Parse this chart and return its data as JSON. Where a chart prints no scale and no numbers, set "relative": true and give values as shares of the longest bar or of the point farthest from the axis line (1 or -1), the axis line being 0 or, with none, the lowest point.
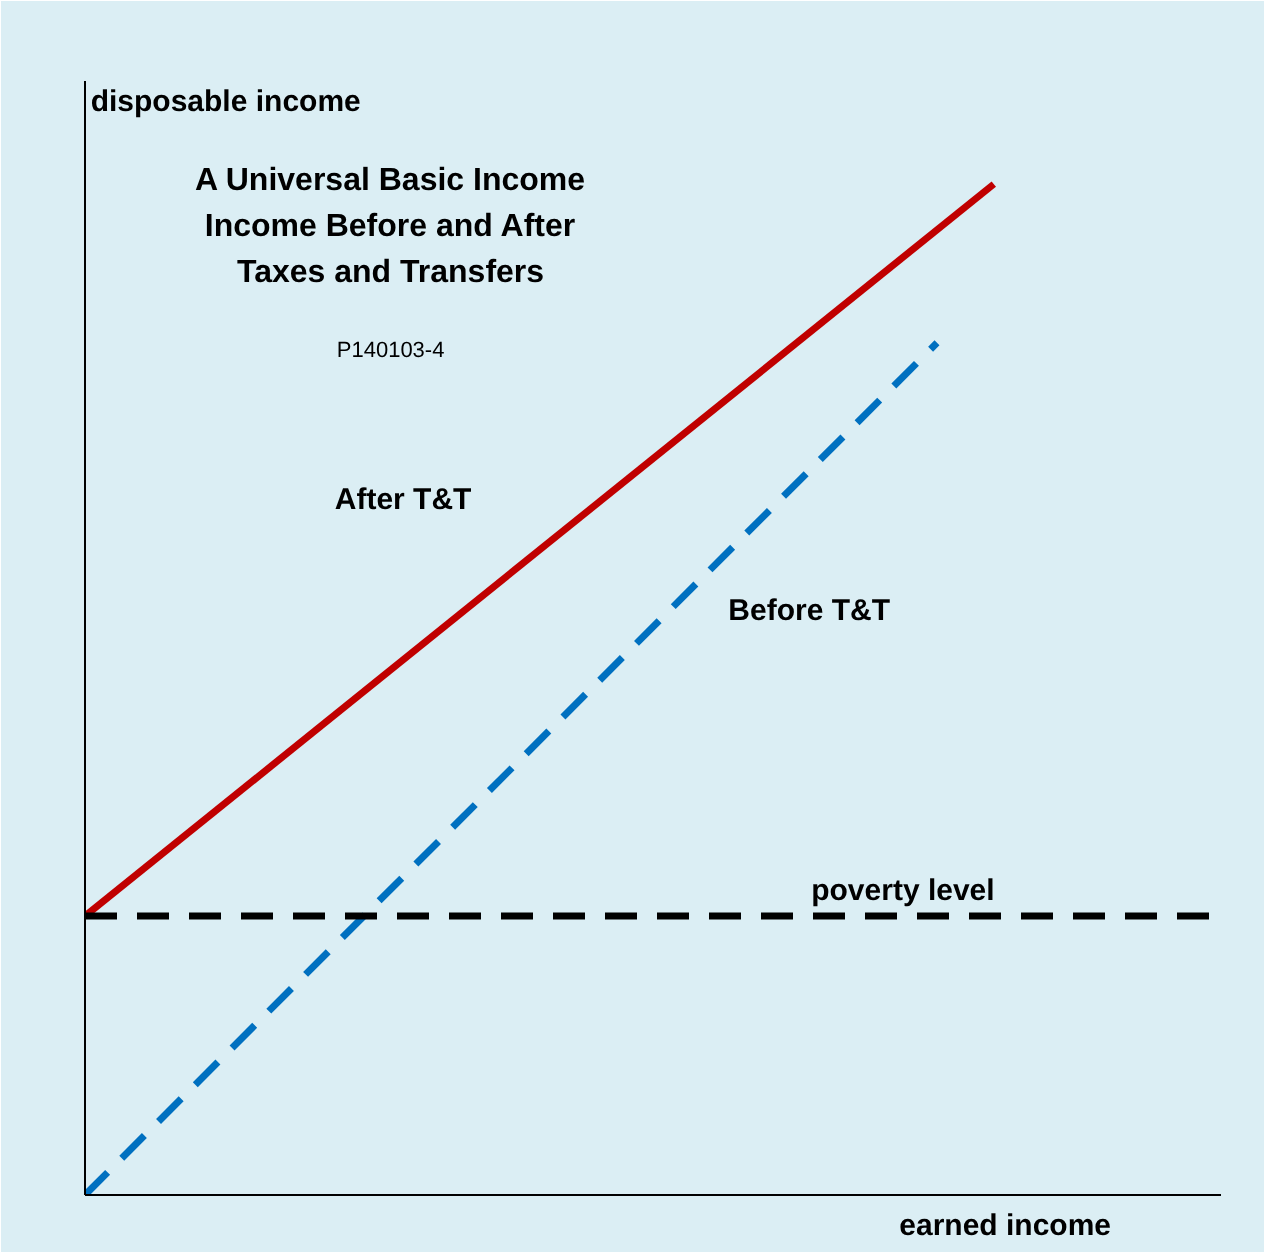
{
  "chart_data": {
    "type": "line",
    "title": "A Universal Basic Income\nIncome Before and After\nTaxes and Transfers",
    "subtitle": "P140103-4",
    "xlabel": "earned income",
    "ylabel": "disposable income",
    "relative": true,
    "categories": [
      null,
      null,
      null,
      null,
      null,
      null,
      null,
      null,
      null,
      null,
      null,
      null,
      null,
      null,
      null,
      null,
      null,
      null,
      null,
      null,
      null
    ],
    "series": [
      {
        "name": "After T&T",
        "color": "#c00000",
        "line_style": "solid",
        "values": [
          0.276,
          null,
          null,
          null,
          null,
          null,
          null,
          null,
          null,
          null,
          null,
          null,
          null,
          null,
          null,
          null,
          1,
          null,
          null,
          null,
          null
        ]
      },
      {
        "name": "Before T&T",
        "color": "#0070c0",
        "line_style": "dashed",
        "values": [
          0,
          null,
          null,
          null,
          null,
          null,
          null,
          null,
          null,
          null,
          null,
          null,
          null,
          null,
          null,
          0.843,
          null,
          null,
          null,
          null,
          null
        ]
      }
    ],
    "ref_lines": [
      {
        "axis": "y",
        "value": 0.276,
        "label": "poverty level",
        "color": "#000000",
        "line_style": "dashed"
      }
    ]
  }
}
